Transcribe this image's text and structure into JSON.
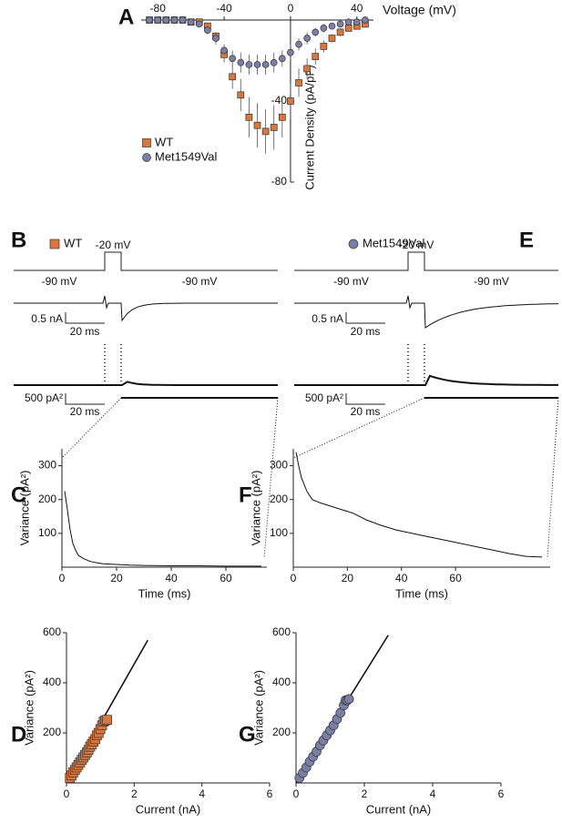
{
  "chart_data": [
    {
      "type": "errorbar",
      "label": "A",
      "x_label": "Voltage (mV)",
      "y_label": "Current Density (pA/pF)",
      "x": [
        -85,
        -80,
        -75,
        -70,
        -65,
        -60,
        -55,
        -50,
        -45,
        -40,
        -35,
        -30,
        -25,
        -20,
        -15,
        -10,
        -5,
        0,
        5,
        10,
        15,
        20,
        25,
        30,
        35,
        40,
        45
      ],
      "xlim": [
        -90,
        50
      ],
      "xticks": [
        -80,
        -40,
        0,
        40
      ],
      "ylim": [
        -80,
        0
      ],
      "yticks": [
        -40,
        -80
      ],
      "series": [
        {
          "name": "WT",
          "color": "#d9773d",
          "marker": "square",
          "values": [
            0,
            0,
            0,
            0,
            0,
            -1,
            -1,
            -3,
            -8,
            -17,
            -28,
            -37,
            -48,
            -52,
            -55,
            -53,
            -48,
            -40,
            -31,
            -24,
            -18,
            -13,
            -9,
            -6,
            -4,
            -3,
            -2
          ],
          "errors": [
            0,
            0,
            0,
            0,
            0,
            0,
            1,
            1,
            2,
            4,
            6,
            8,
            10,
            11,
            11,
            11,
            10,
            9,
            7,
            5,
            4,
            3,
            2,
            2,
            1,
            1,
            1
          ]
        },
        {
          "name": "Met1549Val",
          "color": "#7b7fa6",
          "marker": "circle",
          "values": [
            0,
            0,
            0,
            0,
            0,
            -1,
            -2,
            -5,
            -9,
            -15,
            -19,
            -21,
            -22,
            -22,
            -22,
            -21,
            -19,
            -16,
            -12,
            -9,
            -6,
            -4,
            -3,
            -2,
            -1,
            -1,
            0
          ],
          "errors": [
            0,
            0,
            0,
            0,
            0,
            1,
            1,
            2,
            3,
            3,
            4,
            5,
            5,
            5,
            5,
            5,
            4,
            4,
            3,
            3,
            2,
            2,
            1,
            1,
            1,
            1,
            0
          ]
        }
      ]
    },
    {
      "type": "line",
      "label": "C",
      "x_label": "Time (ms)",
      "y_label": "Variance (pA²)",
      "color": "#111111",
      "x": [
        1,
        2,
        3,
        4,
        5,
        6,
        8,
        10,
        12,
        15,
        20,
        25,
        30,
        40,
        50,
        60,
        70,
        73
      ],
      "values": [
        225,
        170,
        110,
        70,
        50,
        35,
        25,
        18,
        14,
        10,
        8,
        6,
        5,
        4,
        4,
        3,
        3,
        3
      ],
      "xlim": [
        0,
        75
      ],
      "xticks": [
        0,
        20,
        40,
        60
      ],
      "ylim": [
        0,
        350
      ],
      "yticks": [
        100,
        200,
        300
      ]
    },
    {
      "type": "line",
      "label": "F",
      "x_label": "Time (ms)",
      "y_label": "Variance (pA²)",
      "color": "#111111",
      "x": [
        1,
        2,
        3,
        5,
        7,
        10,
        14,
        18,
        22,
        27,
        32,
        38,
        44,
        50,
        56,
        62,
        68,
        74,
        80,
        86,
        92
      ],
      "values": [
        340,
        300,
        265,
        225,
        200,
        190,
        180,
        170,
        160,
        140,
        125,
        110,
        100,
        90,
        80,
        70,
        60,
        50,
        40,
        32,
        30
      ],
      "xlim": [
        0,
        95
      ],
      "xticks": [
        0,
        20,
        40,
        60
      ],
      "ylim": [
        0,
        350
      ],
      "yticks": [
        100,
        200,
        300
      ]
    },
    {
      "type": "scatter",
      "label": "D",
      "x_label": "Current (nA)",
      "y_label": "Variance (pA²)",
      "color": "#d9773d",
      "marker": "square",
      "x": [
        0.1,
        0.15,
        0.2,
        0.25,
        0.3,
        0.35,
        0.4,
        0.45,
        0.5,
        0.55,
        0.6,
        0.65,
        0.7,
        0.75,
        0.8,
        0.85,
        0.9,
        0.95,
        1.0,
        1.05,
        1.1,
        1.15,
        1.2
      ],
      "values": [
        20,
        30,
        42,
        52,
        62,
        72,
        82,
        92,
        102,
        112,
        122,
        132,
        145,
        155,
        165,
        175,
        190,
        200,
        215,
        230,
        245,
        250,
        252
      ],
      "fit": {
        "x": [
          0,
          2.4
        ],
        "values": [
          0,
          570
        ]
      },
      "xlim": [
        0,
        6
      ],
      "xticks": [
        0,
        2,
        4,
        6
      ],
      "ylim": [
        0,
        600
      ],
      "yticks": [
        200,
        400,
        600
      ]
    },
    {
      "type": "scatter",
      "label": "G",
      "x_label": "Current (nA)",
      "y_label": "Variance (pA²)",
      "color": "#7b7fa6",
      "marker": "circle",
      "x": [
        0.1,
        0.2,
        0.3,
        0.4,
        0.5,
        0.6,
        0.7,
        0.8,
        0.9,
        1.0,
        1.1,
        1.2,
        1.3,
        1.4,
        1.45,
        1.5,
        1.55
      ],
      "values": [
        20,
        40,
        62,
        85,
        105,
        125,
        150,
        170,
        190,
        210,
        230,
        255,
        280,
        310,
        330,
        330,
        335
      ],
      "fit": {
        "x": [
          0,
          2.7
        ],
        "values": [
          0,
          590
        ]
      },
      "xlim": [
        0,
        6
      ],
      "xticks": [
        0,
        2,
        4,
        6
      ],
      "ylim": [
        0,
        600
      ],
      "yticks": [
        200,
        400,
        600
      ]
    }
  ],
  "traces": [
    {
      "label": "B",
      "legend": "WT",
      "color": "#d9773d",
      "marker": "square",
      "step_voltage": "-20 mV",
      "holding_voltage": [
        "-90 mV",
        "-90 mV"
      ],
      "current_scale": "0.5 nA",
      "time_scale": "20 ms",
      "variance_scale": "500 pA²",
      "variance_time_scale": "20 ms"
    },
    {
      "label": "E",
      "legend": "Met1549Val",
      "color": "#7b7fa6",
      "marker": "circle",
      "step_voltage": "-20 mV",
      "holding_voltage": [
        "-90 mV",
        "-90 mV"
      ],
      "current_scale": "0.5 nA",
      "time_scale": "20 ms",
      "variance_scale": "500 pA²",
      "variance_time_scale": "20 ms"
    }
  ]
}
